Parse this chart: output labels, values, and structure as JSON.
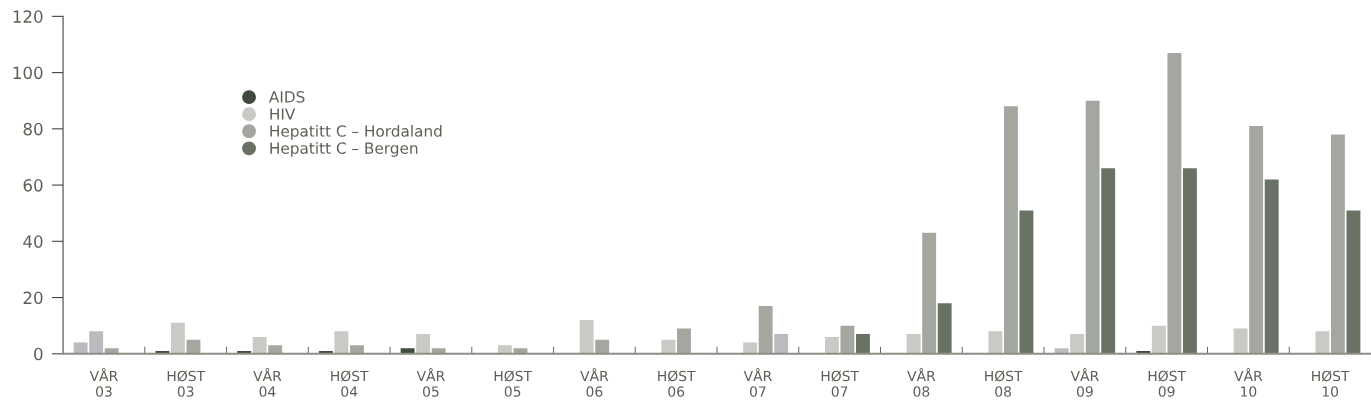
{
  "chart_data": {
    "type": "bar",
    "categories": [
      "VÅR\n03",
      "HØST\n03",
      "VÅR\n04",
      "HØST\n04",
      "VÅR\n05",
      "HØST\n05",
      "VÅR\n06",
      "HØST\n06",
      "VÅR\n07",
      "HØST\n07",
      "VÅR\n08",
      "HØST\n08",
      "VÅR\n09",
      "HØST\n09",
      "VÅR\n10",
      "HØST\n10"
    ],
    "series": [
      {
        "name": "AIDS",
        "color": "#3f4a3c",
        "colors": [
          "#babbbf",
          "#3f4a3c",
          "#3f4a3c",
          "#3f4a3c",
          "#3f4a3c",
          "#3f4a3c",
          "#3f4a3c",
          "#3f4a3c",
          "#3f4a3c",
          "#3f4a3c",
          "#3f4a3c",
          "#3f4a3c",
          "#babbbf",
          "#3f4a3c",
          "#3f4a3c",
          "#3f4a3c"
        ],
        "values": [
          4,
          1,
          1,
          1,
          2,
          0,
          0,
          0,
          0,
          0,
          0,
          0,
          2,
          1,
          0,
          0
        ]
      },
      {
        "name": "HIV",
        "color": "#c8cac5",
        "colors": [
          "#babbbf",
          "#c8cac5",
          "#c8cac5",
          "#c8cac5",
          "#c8cac5",
          "#c8cac5",
          "#c8cac5",
          "#c8cac5",
          "#c8cac5",
          "#c8cac5",
          "#c8cac5",
          "#c8cac5",
          "#c8cac5",
          "#c8cac5",
          "#c8cac5",
          "#c8cac5"
        ],
        "values": [
          8,
          11,
          6,
          8,
          7,
          3,
          12,
          5,
          4,
          6,
          7,
          8,
          7,
          10,
          9,
          8
        ]
      },
      {
        "name": "Hepatitt C – Hordaland",
        "color": "#a3a7a0",
        "values": [
          2,
          5,
          3,
          3,
          2,
          2,
          5,
          9,
          17,
          10,
          43,
          88,
          90,
          107,
          81,
          78
        ]
      },
      {
        "name": "Hepatitt C – Bergen",
        "color": "#6a7264",
        "colors": [
          "#6a7264",
          "#6a7264",
          "#6a7264",
          "#6a7264",
          "#6a7264",
          "#6a7264",
          "#6a7264",
          "#6a7264",
          "#babbbf",
          "#6a7264",
          "#6a7264",
          "#6a7264",
          "#6a7264",
          "#6a7264",
          "#6a7264",
          "#6a7264"
        ],
        "values": [
          null,
          null,
          null,
          null,
          null,
          null,
          null,
          null,
          7,
          7,
          18,
          51,
          66,
          66,
          62,
          51
        ]
      }
    ],
    "ylim": [
      0,
      120
    ],
    "yticks": [
      0,
      20,
      40,
      60,
      80,
      100,
      120
    ],
    "grid": false,
    "legend": "top left"
  }
}
